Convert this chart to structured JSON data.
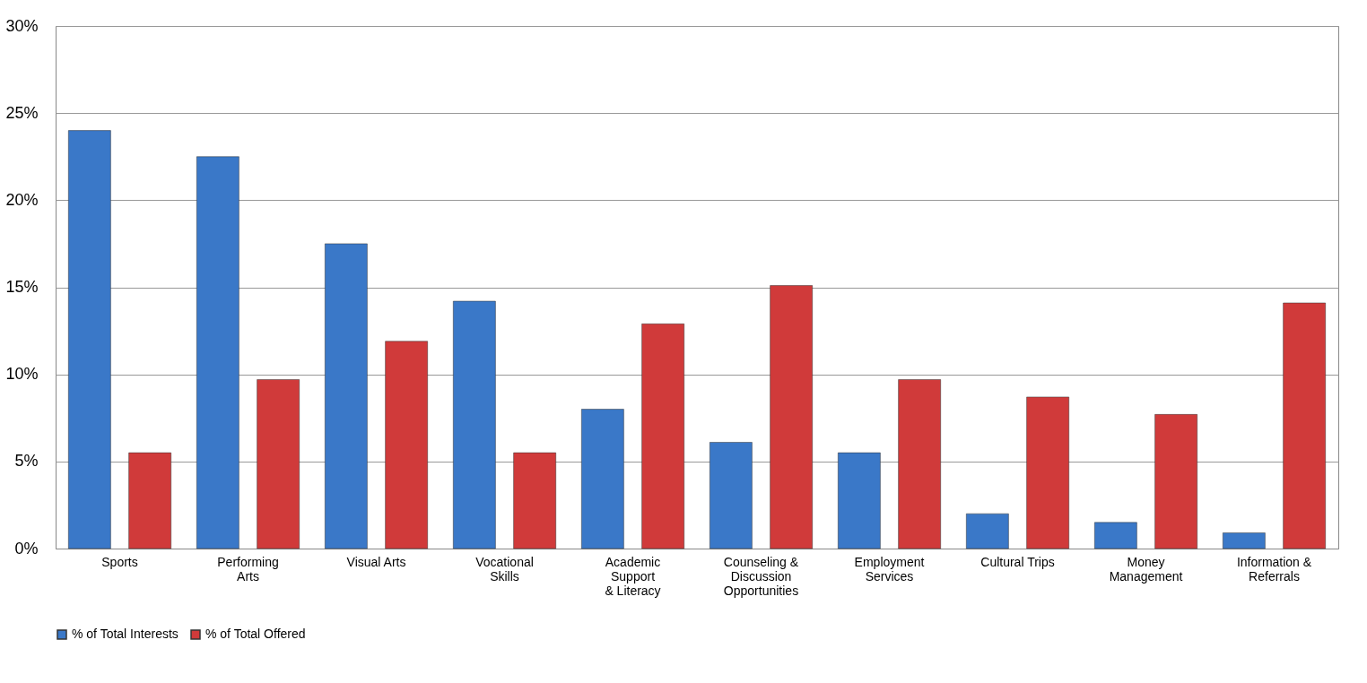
{
  "chart_data": {
    "type": "bar",
    "categories": [
      "Sports",
      "Performing\nArts",
      "Visual Arts",
      "Vocational\nSkills",
      "Academic\nSupport\n& Literacy",
      "Counseling &\nDiscussion\nOpportunities",
      "Employment\nServices",
      "Cultural Trips",
      "Money\nManagement",
      "Information &\nReferrals"
    ],
    "series": [
      {
        "name": "% of Total Interests",
        "color": "#3a78c8",
        "values": [
          24.0,
          22.5,
          17.5,
          14.2,
          8.0,
          6.1,
          5.5,
          2.0,
          1.5,
          0.9
        ]
      },
      {
        "name": "% of Total Offered",
        "color": "#d03a3a",
        "values": [
          5.5,
          9.7,
          11.9,
          5.5,
          12.9,
          15.1,
          9.7,
          8.7,
          7.7,
          14.1
        ]
      }
    ],
    "ylim": [
      0,
      30
    ],
    "yticks": [
      {
        "value": 0,
        "label": "0%"
      },
      {
        "value": 5,
        "label": "5%"
      },
      {
        "value": 10,
        "label": "10%"
      },
      {
        "value": 15,
        "label": "15%"
      },
      {
        "value": 20,
        "label": "20%"
      },
      {
        "value": 25,
        "label": "25%"
      },
      {
        "value": 30,
        "label": "30%"
      }
    ],
    "grid": "y",
    "legend": "bottom"
  }
}
